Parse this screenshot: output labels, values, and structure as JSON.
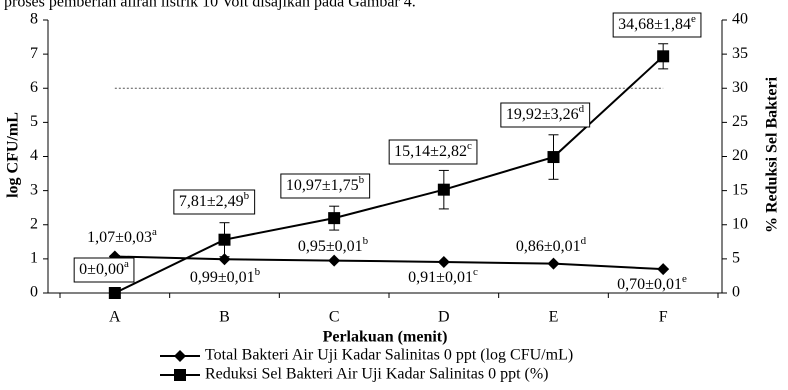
{
  "header_text": "proses pemberian aliran listrik 10 Volt disajikan pada Gambar 4.",
  "chart_data": {
    "type": "line",
    "x_label": "Perlakuan (menit)",
    "y_label": "log CFU/mL",
    "y2_label": "% Reduksi Sel Bakteri",
    "categories": [
      "A",
      "B",
      "C",
      "D",
      "E",
      "F"
    ],
    "ylim": [
      0,
      8
    ],
    "yticks": [
      0,
      1,
      2,
      3,
      4,
      5,
      6,
      7,
      8
    ],
    "y2lim": [
      0,
      40
    ],
    "y2ticks": [
      0,
      5,
      10,
      15,
      20,
      25,
      30,
      35,
      40
    ],
    "reference_line": 6,
    "series": [
      {
        "name": "Total Bakteri Air Uji Kadar Salinitas 0 ppt (log CFU/mL)",
        "color": "#000000",
        "marker": "diamond",
        "values": [
          1.07,
          0.99,
          0.95,
          0.91,
          0.86,
          0.7
        ],
        "errors": [
          0.03,
          0.01,
          0.01,
          0.01,
          0.01,
          0.01
        ],
        "value_labels": [
          "1,07±0,03",
          "0,99±0,01",
          "0,95±0,01",
          "0,91±0,01",
          "0,86±0,01",
          "0,70±0,01"
        ],
        "superscripts": [
          "a",
          "b",
          "b",
          "c",
          "d",
          "e"
        ]
      },
      {
        "name": "Reduksi Sel Bakteri Air Uji Kadar Salinitas 0 ppt (%)",
        "color": "#000000",
        "marker": "square",
        "axis": "y2",
        "values": [
          0,
          7.81,
          10.97,
          15.14,
          19.92,
          34.68
        ],
        "errors": [
          0.0,
          2.49,
          1.75,
          2.82,
          3.26,
          1.84
        ],
        "value_labels": [
          "0±0,00",
          "7,81±2,49",
          "10,97±1,75",
          "15,14±2,82",
          "19,92±3,26",
          "34,68±1,84"
        ],
        "superscripts": [
          "a",
          "b",
          "b",
          "c",
          "d",
          "e"
        ]
      }
    ]
  }
}
